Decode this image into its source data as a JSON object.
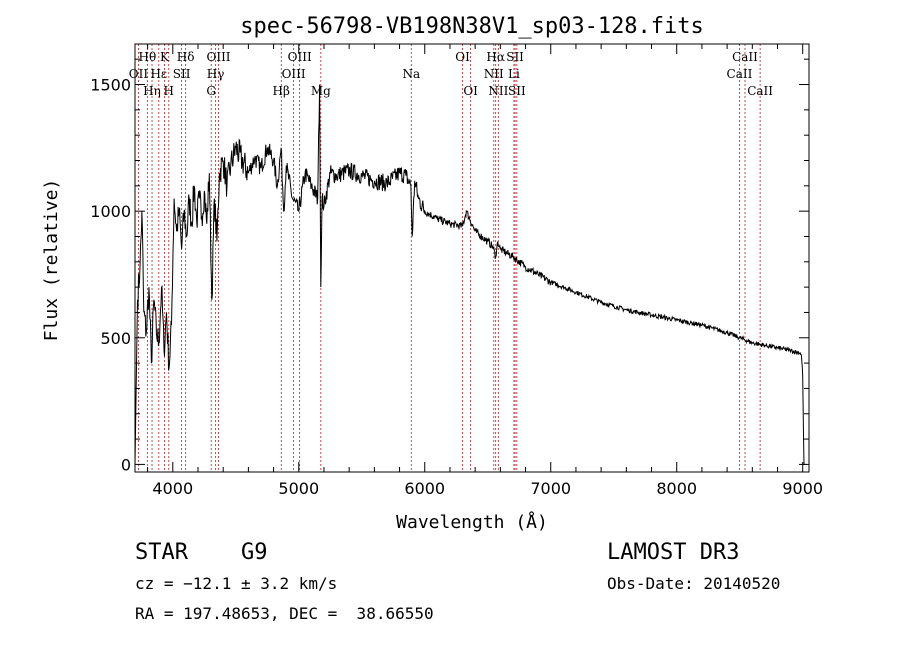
{
  "chart_data": {
    "type": "line",
    "title": "spec-56798-VB198N38V1_sp03-128.fits",
    "xlabel": "Wavelength (Å)",
    "ylabel": "Flux (relative)",
    "xlim": [
      3700,
      9050
    ],
    "ylim": [
      -30,
      1660
    ],
    "x_ticks": [
      4000,
      5000,
      6000,
      7000,
      8000,
      9000
    ],
    "x_tick_labels": [
      "4000",
      "5000",
      "6000",
      "7000",
      "8000",
      "9000"
    ],
    "y_ticks": [
      0,
      500,
      1000,
      1500
    ],
    "y_tick_labels": [
      "0",
      "500",
      "1000",
      "1500"
    ],
    "grid": false,
    "series": [
      {
        "name": "flux",
        "x": [
          3700,
          3720,
          3740,
          3755,
          3770,
          3790,
          3810,
          3830,
          3850,
          3870,
          3890,
          3910,
          3930,
          3950,
          3970,
          3990,
          4010,
          4030,
          4050,
          4070,
          4090,
          4110,
          4130,
          4150,
          4170,
          4190,
          4210,
          4230,
          4250,
          4270,
          4290,
          4310,
          4330,
          4350,
          4370,
          4400,
          4430,
          4460,
          4500,
          4550,
          4600,
          4650,
          4700,
          4750,
          4800,
          4830,
          4860,
          4880,
          4900,
          4950,
          5000,
          5050,
          5100,
          5150,
          5165,
          5175,
          5185,
          5200,
          5250,
          5300,
          5400,
          5500,
          5600,
          5700,
          5800,
          5850,
          5890,
          5900,
          5920,
          5950,
          6000,
          6100,
          6200,
          6300,
          6330,
          6400,
          6500,
          6540,
          6563,
          6580,
          6600,
          6700,
          6800,
          6900,
          7000,
          7200,
          7400,
          7600,
          7800,
          8000,
          8200,
          8400,
          8500,
          8600,
          8700,
          8800,
          8900,
          8980,
          8990,
          9000,
          9010,
          9020
        ],
        "y": [
          0,
          650,
          780,
          1000,
          600,
          520,
          700,
          400,
          650,
          520,
          480,
          700,
          450,
          600,
          380,
          550,
          1050,
          920,
          1000,
          850,
          1000,
          900,
          1050,
          950,
          1100,
          960,
          1050,
          980,
          1080,
          950,
          1150,
          650,
          1050,
          880,
          1150,
          1200,
          1100,
          1180,
          1250,
          1200,
          1150,
          1210,
          1170,
          1250,
          1200,
          1100,
          1250,
          1000,
          1180,
          1050,
          1000,
          1150,
          1100,
          1050,
          1500,
          700,
          1050,
          1020,
          1150,
          1140,
          1160,
          1140,
          1120,
          1110,
          1150,
          1140,
          1100,
          900,
          1120,
          1050,
          1000,
          970,
          950,
          940,
          1000,
          920,
          880,
          860,
          820,
          880,
          850,
          820,
          780,
          750,
          720,
          680,
          640,
          610,
          590,
          570,
          550,
          520,
          500,
          480,
          470,
          460,
          450,
          440,
          430,
          350,
          0,
          0
        ]
      }
    ],
    "lines": [
      {
        "label": "Hθ",
        "x": 3798,
        "row": 1,
        "offset": 0
      },
      {
        "label": "OII",
        "x": 3727,
        "row": 2,
        "offset": 0
      },
      {
        "label": "Hη",
        "x": 3835,
        "row": 3,
        "offset": 0
      },
      {
        "label": "Hε",
        "x": 3889,
        "row": 2,
        "offset": 0
      },
      {
        "label": "K",
        "x": 3934,
        "row": 1,
        "offset": 0
      },
      {
        "label": "H",
        "x": 3968,
        "row": 3,
        "offset": 0
      },
      {
        "label": "SII",
        "x": 4070,
        "row": 2,
        "offset": 0
      },
      {
        "label": "Hδ",
        "x": 4102,
        "row": 1,
        "offset": 0
      },
      {
        "label": "OIII",
        "x": 4363,
        "row": 1,
        "offset": 0
      },
      {
        "label": "Hγ",
        "x": 4340,
        "row": 2,
        "offset": 0
      },
      {
        "label": "G",
        "x": 4305,
        "row": 3,
        "offset": 0
      },
      {
        "label": "Hβ",
        "x": 4861,
        "row": 3,
        "offset": 0
      },
      {
        "label": "OIII",
        "x": 5007,
        "row": 1,
        "offset": 0
      },
      {
        "label": "OIII",
        "x": 4959,
        "row": 2,
        "offset": 0
      },
      {
        "label": "Mg",
        "x": 5175,
        "row": 3,
        "offset": 0
      },
      {
        "label": "Na",
        "x": 5893,
        "row": 2,
        "offset": 0
      },
      {
        "label": "OI",
        "x": 6300,
        "row": 1,
        "offset": 0
      },
      {
        "label": "OI",
        "x": 6364,
        "row": 3,
        "offset": 0
      },
      {
        "label": "Hα",
        "x": 6563,
        "row": 1,
        "offset": 0
      },
      {
        "label": "NII",
        "x": 6548,
        "row": 2,
        "offset": 0
      },
      {
        "label": "NII",
        "x": 6584,
        "row": 3,
        "offset": 0
      },
      {
        "label": "SII",
        "x": 6717,
        "row": 1,
        "offset": 0
      },
      {
        "label": "Li",
        "x": 6708,
        "row": 2,
        "offset": 0
      },
      {
        "label": "SII",
        "x": 6731,
        "row": 3,
        "offset": 0
      },
      {
        "label": "CaII",
        "x": 8542,
        "row": 1,
        "offset": 0
      },
      {
        "label": "CaII",
        "x": 8498,
        "row": 2,
        "offset": 0
      },
      {
        "label": "CaII",
        "x": 8662,
        "row": 3,
        "offset": 0
      }
    ]
  },
  "info": {
    "class": "STAR    G9",
    "survey": "LAMOST DR3",
    "cz": "cz = −12.1 ± 3.2 km/s",
    "obs_date": "Obs-Date: 20140520",
    "coords": "RA = 197.48653, DEC =  38.66550"
  },
  "colors": {
    "line_marker": "#b22222",
    "spectrum": "#000000",
    "axis": "#000000"
  }
}
